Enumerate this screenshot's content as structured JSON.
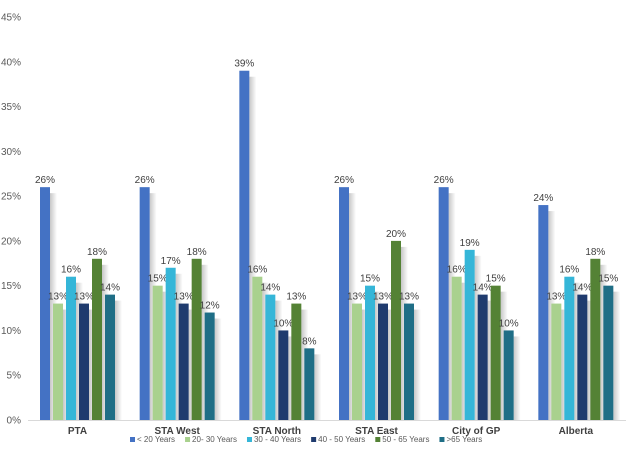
{
  "chart_data": {
    "type": "bar",
    "title": "",
    "xlabel": "",
    "ylabel": "",
    "ylim": [
      0,
      45
    ],
    "yticks": [
      0,
      5,
      10,
      15,
      20,
      25,
      30,
      35,
      40,
      45
    ],
    "ytick_suffix": "%",
    "grid": false,
    "legend_position": "bottom",
    "categories": [
      "PTA",
      "STA West",
      "STA North",
      "STA East",
      "City of GP",
      "Alberta"
    ],
    "series": [
      {
        "name": "< 20 Years",
        "color": "#4472c4",
        "values": [
          26,
          26,
          39,
          26,
          26,
          24
        ]
      },
      {
        "name": "20- 30 Years",
        "color": "#a9d18e",
        "values": [
          13,
          15,
          16,
          13,
          16,
          13
        ]
      },
      {
        "name": "30 - 40 Years",
        "color": "#35b6d8",
        "values": [
          16,
          17,
          14,
          15,
          19,
          16
        ]
      },
      {
        "name": "40 - 50 Years",
        "color": "#1f3b6e",
        "values": [
          13,
          13,
          10,
          13,
          14,
          14
        ]
      },
      {
        "name": "50 - 65 Years",
        "color": "#548235",
        "values": [
          18,
          18,
          13,
          20,
          15,
          18
        ]
      },
      {
        "name": ">65 Years",
        "color": "#1f6e86",
        "values": [
          14,
          12,
          8,
          13,
          10,
          15
        ]
      }
    ]
  }
}
